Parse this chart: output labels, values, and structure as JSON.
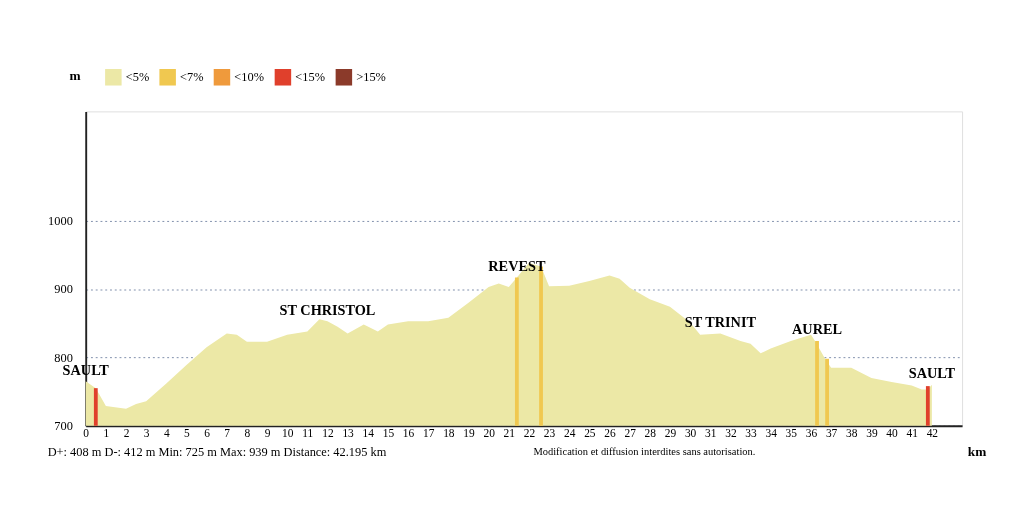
{
  "chart_data": {
    "type": "area",
    "xlabel": "km",
    "ylabel": "m",
    "xlim": [
      0,
      43.5
    ],
    "xticks": [
      0,
      1,
      2,
      3,
      4,
      5,
      6,
      7,
      8,
      9,
      10,
      11,
      12,
      13,
      14,
      15,
      16,
      17,
      18,
      19,
      20,
      21,
      22,
      23,
      24,
      25,
      26,
      27,
      28,
      29,
      30,
      31,
      32,
      33,
      34,
      35,
      36,
      37,
      38,
      39,
      40,
      41,
      42
    ],
    "ylim": [
      700,
      1160
    ],
    "yticks": [
      700,
      800,
      900,
      {
        "value": 1000,
        "label": "1000"
      }
    ],
    "grid": "y",
    "legend": "top left",
    "series": [
      {
        "name": "<5%",
        "color": "#ece8a6",
        "x": [
          0,
          0.5,
          1,
          2,
          2.5,
          3,
          4,
          5,
          6,
          7,
          7.5,
          8,
          9,
          10,
          11,
          11.6,
          12,
          12.5,
          13,
          13.8,
          14.5,
          15,
          16,
          17,
          18,
          19,
          20,
          20.5,
          21,
          21.4,
          22,
          22.6,
          23,
          24,
          25,
          26,
          26.5,
          27,
          28,
          29,
          30,
          30.5,
          31.5,
          32.5,
          33,
          33.5,
          34,
          35,
          36,
          36.2,
          36.7,
          37,
          38,
          39,
          40,
          41,
          41.5,
          41.8,
          42
        ],
        "values": [
          765,
          755,
          729,
          725,
          732,
          736,
          762,
          789,
          815,
          835,
          833,
          823,
          823,
          833,
          838,
          856,
          853,
          845,
          835,
          848,
          838,
          848,
          853,
          853,
          858,
          880,
          903,
          908,
          903,
          917,
          938,
          933,
          904,
          905,
          912,
          920,
          915,
          902,
          885,
          874,
          851,
          833,
          835,
          824,
          820,
          806,
          813,
          824,
          833,
          824,
          798,
          785,
          785,
          770,
          764,
          759,
          753,
          753,
          760
        ]
      },
      {
        "name": "<7%",
        "color": "#f0c850",
        "type": "bar",
        "x": [
          21.4,
          22.6,
          36.3,
          36.8
        ],
        "values": [
          917,
          933,
          824,
          798
        ]
      },
      {
        "name": "<10%",
        "color": "#ef9a3c",
        "type": "bar"
      },
      {
        "name": "<15%",
        "color": "#e0402c",
        "type": "bar",
        "x": [
          0.5,
          41.8
        ],
        "values": [
          755,
          758
        ]
      },
      {
        "name": ">15%",
        "color": "#8b3a2a",
        "type": "bar"
      }
    ],
    "annotations": [
      {
        "text": "SAULT",
        "x": 0,
        "y": 765
      },
      {
        "text": "ST CHRISTOL",
        "x": 12,
        "y": 853
      },
      {
        "text": "REVEST",
        "x": 21.4,
        "y": 917
      },
      {
        "text": "ST TRINIT",
        "x": 31.5,
        "y": 835
      },
      {
        "text": "AUREL",
        "x": 36.3,
        "y": 824
      },
      {
        "text": "SAULT",
        "x": 42,
        "y": 760
      },
      "D+: 408 m     D-: 412 m     Min: 725 m     Max: 939 m     Distance: 42.195 km",
      "Modification et diffusion interdites sans autorisation."
    ]
  }
}
